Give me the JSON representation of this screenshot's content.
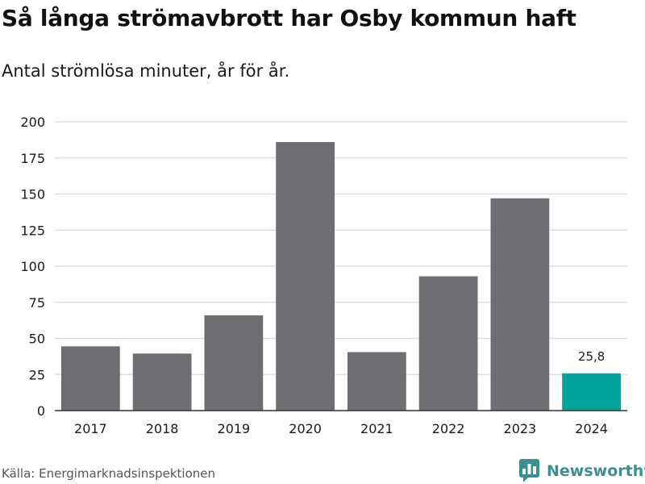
{
  "title": "Så långa strömavbrott har Osby kommun haft",
  "subtitle": "Antal strömlösa minuter, år för år.",
  "source": "Källa: Energimarknadsinspektionen",
  "brand": "Newsworthy",
  "colors": {
    "bar": "#6e6d72",
    "highlight": "#00a49a",
    "grid": "#d9d9d9",
    "axis": "#333333",
    "brand": "#3a8f95"
  },
  "chart_data": {
    "type": "bar",
    "title": "Så långa strömavbrott har Osby kommun haft",
    "subtitle": "Antal strömlösa minuter, år för år.",
    "xlabel": "",
    "ylabel": "",
    "categories": [
      "2017",
      "2018",
      "2019",
      "2020",
      "2021",
      "2022",
      "2023",
      "2024"
    ],
    "values": [
      44.5,
      39.5,
      66,
      186,
      40.5,
      93,
      147,
      25.8
    ],
    "highlight_index": 7,
    "data_labels": [
      {
        "index": 7,
        "text": "25,8"
      }
    ],
    "ylim": [
      0,
      200
    ],
    "yticks": [
      "0",
      "25",
      "50",
      "75",
      "100",
      "125",
      "150",
      "175",
      "200"
    ],
    "grid": true,
    "legend": "none"
  }
}
